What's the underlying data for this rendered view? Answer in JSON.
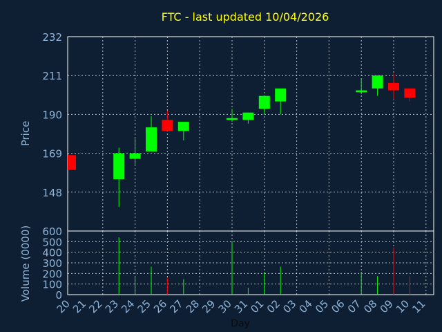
{
  "chart_data": [
    {
      "type": "candlestick",
      "title": "FTC - last updated 10/04/2026",
      "ylabel": "Price",
      "ylim": [
        127,
        232
      ],
      "yticks": [
        148,
        169,
        190,
        211,
        232
      ],
      "grid": true,
      "x_ticks": [
        "20",
        "21",
        "22",
        "23",
        "24",
        "25",
        "26",
        "27",
        "28",
        "29",
        "30",
        "31",
        "01",
        "02",
        "03",
        "04",
        "05",
        "06",
        "07",
        "08",
        "09",
        "10",
        "11"
      ],
      "candles": [
        {
          "day": "20",
          "open": 168,
          "close": 160,
          "high": 168,
          "low": 160
        },
        {
          "day": "23",
          "open": 155,
          "close": 169,
          "high": 172,
          "low": 140
        },
        {
          "day": "24",
          "open": 166,
          "close": 169,
          "high": 177,
          "low": 163
        },
        {
          "day": "25",
          "open": 170,
          "close": 183,
          "high": 189,
          "low": 170
        },
        {
          "day": "26",
          "open": 187,
          "close": 181,
          "high": 192,
          "low": 181
        },
        {
          "day": "27",
          "open": 181,
          "close": 186,
          "high": 186,
          "low": 176
        },
        {
          "day": "30",
          "open": 187,
          "close": 188,
          "high": 193,
          "low": 186
        },
        {
          "day": "31",
          "open": 187,
          "close": 191,
          "high": 191,
          "low": 185
        },
        {
          "day": "01",
          "open": 193,
          "close": 200,
          "high": 200,
          "low": 190
        },
        {
          "day": "02",
          "open": 197,
          "close": 204,
          "high": 204,
          "low": 190
        },
        {
          "day": "07",
          "open": 202,
          "close": 203,
          "high": 209,
          "low": 201
        },
        {
          "day": "08",
          "open": 204,
          "close": 211,
          "high": 211,
          "low": 200
        },
        {
          "day": "09",
          "open": 207,
          "close": 203,
          "high": 212,
          "low": 198
        },
        {
          "day": "10",
          "open": 204,
          "close": 199,
          "high": 204,
          "low": 197
        }
      ]
    },
    {
      "type": "bar",
      "ylabel": "Volume (0000)",
      "xlabel": "Day",
      "ylim": [
        0,
        600
      ],
      "yticks": [
        0,
        100,
        200,
        300,
        400,
        500,
        600
      ],
      "grid": true,
      "x_ticks": [
        "20",
        "21",
        "22",
        "23",
        "24",
        "25",
        "26",
        "27",
        "28",
        "29",
        "30",
        "31",
        "01",
        "02",
        "03",
        "04",
        "05",
        "06",
        "07",
        "08",
        "09",
        "10",
        "11"
      ],
      "bars": [
        {
          "day": "23",
          "value": 540,
          "color": "#00ff00"
        },
        {
          "day": "24",
          "value": 175,
          "color": "#00ff00"
        },
        {
          "day": "25",
          "value": 265,
          "color": "#00ff00"
        },
        {
          "day": "26",
          "value": 160,
          "color": "#ff0000"
        },
        {
          "day": "27",
          "value": 145,
          "color": "#00ff00"
        },
        {
          "day": "30",
          "value": 500,
          "color": "#00ff00"
        },
        {
          "day": "31",
          "value": 65,
          "color": "#00ff00"
        },
        {
          "day": "01",
          "value": 215,
          "color": "#00ff00"
        },
        {
          "day": "02",
          "value": 265,
          "color": "#00ff00"
        },
        {
          "day": "07",
          "value": 215,
          "color": "#00ff00"
        },
        {
          "day": "08",
          "value": 175,
          "color": "#00ff00"
        },
        {
          "day": "09",
          "value": 445,
          "color": "#ff0000"
        },
        {
          "day": "10",
          "value": 175,
          "color": "#ff0000"
        }
      ]
    }
  ],
  "colors": {
    "background": "#0f1f33",
    "up": "#00ff00",
    "down": "#ff0000",
    "title": "#ffff00",
    "axis_text": "#8fb4d8",
    "grid": "#ffffff",
    "frame": "#ffffff"
  }
}
